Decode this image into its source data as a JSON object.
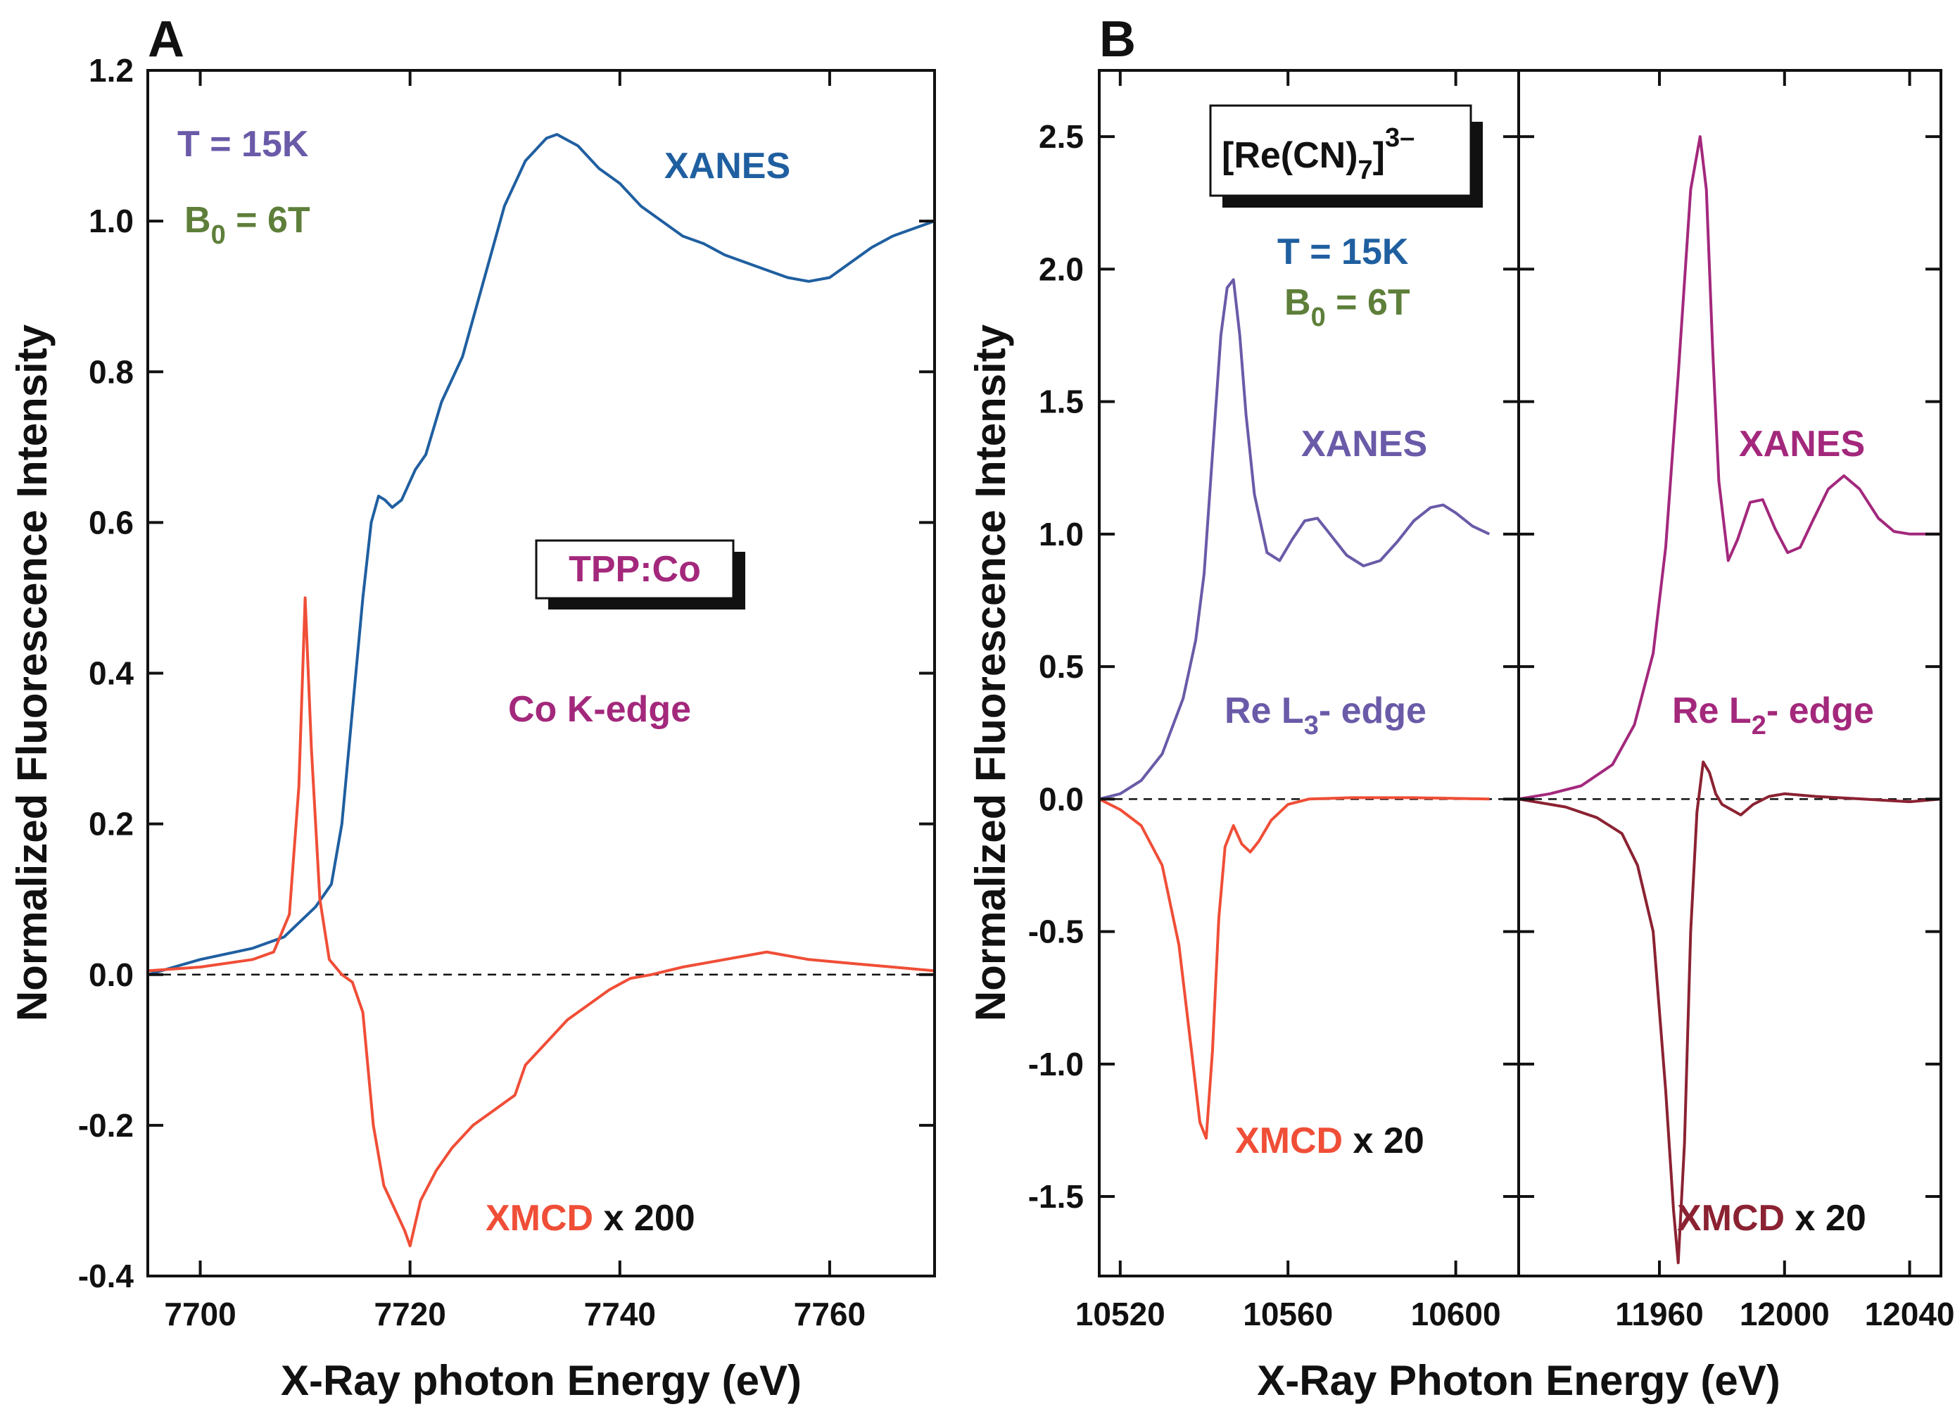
{
  "chart_data": [
    {
      "type": "line",
      "panel": "A",
      "xlabel": "X-Ray photon Energy  (eV)",
      "ylabel": "Normalized Fluorescence Intensity",
      "xlim": [
        7695,
        7770
      ],
      "ylim": [
        -0.4,
        1.2
      ],
      "xticks": [
        7700,
        7720,
        7740,
        7760
      ],
      "yticks": [
        -0.4,
        -0.2,
        0.0,
        0.2,
        0.4,
        0.6,
        0.8,
        1.0,
        1.2
      ],
      "ytick_labels": [
        "-0.4",
        "-0.2",
        "0.0",
        "0.2",
        "0.4",
        "0.6",
        "0.8",
        "1.0",
        "1.2"
      ],
      "baseline": 0.0,
      "series": [
        {
          "name": "XANES",
          "color": "#1f5fa0",
          "x": [
            7695,
            7700,
            7705,
            7708,
            7709.5,
            7711,
            7712.5,
            7713.5,
            7714.5,
            7715.5,
            7716.3,
            7717,
            7717.6,
            7718.3,
            7719.2,
            7720.5,
            7721.5,
            7723,
            7725,
            7727,
            7729,
            7731,
            7733,
            7734,
            7736,
            7738,
            7740,
            7742,
            7744,
            7746,
            7748,
            7750,
            7752,
            7754,
            7756,
            7758,
            7760,
            7762,
            7764,
            7766,
            7768,
            7770
          ],
          "values": [
            0.0,
            0.02,
            0.035,
            0.05,
            0.07,
            0.09,
            0.12,
            0.2,
            0.35,
            0.5,
            0.6,
            0.635,
            0.63,
            0.62,
            0.63,
            0.67,
            0.69,
            0.76,
            0.82,
            0.92,
            1.02,
            1.08,
            1.11,
            1.115,
            1.1,
            1.07,
            1.05,
            1.02,
            1.0,
            0.98,
            0.97,
            0.955,
            0.945,
            0.935,
            0.925,
            0.92,
            0.925,
            0.945,
            0.965,
            0.98,
            0.99,
            1.0
          ]
        },
        {
          "name": "XMCD x 200",
          "color": "#f04e37",
          "x": [
            7695,
            7700,
            7705,
            7707,
            7708.5,
            7709.4,
            7710,
            7710.6,
            7711.4,
            7712.3,
            7713.5,
            7714.5,
            7715.5,
            7716.5,
            7717.5,
            7718.5,
            7719.5,
            7720,
            7721,
            7722.5,
            7724,
            7726,
            7728,
            7730,
            7731,
            7733,
            7735,
            7737,
            7739,
            7741,
            7743,
            7746,
            7750,
            7754,
            7758,
            7762,
            7766,
            7770
          ],
          "values": [
            0.005,
            0.01,
            0.02,
            0.03,
            0.08,
            0.25,
            0.5,
            0.3,
            0.1,
            0.02,
            0.0,
            -0.01,
            -0.05,
            -0.2,
            -0.28,
            -0.31,
            -0.34,
            -0.36,
            -0.3,
            -0.26,
            -0.23,
            -0.2,
            -0.18,
            -0.16,
            -0.12,
            -0.09,
            -0.06,
            -0.04,
            -0.02,
            -0.005,
            0.0,
            0.01,
            0.02,
            0.03,
            0.02,
            0.015,
            0.01,
            0.005
          ]
        }
      ],
      "annotations": {
        "temperature": "T = 15K",
        "field_prefix": "B",
        "field_sub": "0",
        "field_suffix": " = 6T",
        "xanes_label": "XANES",
        "sample_label": "TPP:Co",
        "edge_label": "Co  K-edge",
        "xmcd_label": "XMCD",
        "xmcd_scale": " x 200",
        "colors": {
          "temperature": "#6a5aa8",
          "field": "#5e7f3a",
          "sample": "#a3287c",
          "edge": "#a3287c"
        }
      }
    },
    {
      "type": "line",
      "panel": "B",
      "xlabel": "X-Ray Photon Energy  (eV)",
      "ylabel": "Normalized Fluorescence Intensity",
      "ylim": [
        -1.8,
        2.75
      ],
      "yticks": [
        -1.5,
        -1.0,
        -0.5,
        0.0,
        0.5,
        1.0,
        1.5,
        2.0,
        2.5
      ],
      "ytick_labels": [
        "-1.5",
        "-1.0",
        "-0.5",
        "0.0",
        "0.5",
        "1.0",
        "1.5",
        "2.0",
        "2.5"
      ],
      "baseline": 0.0,
      "sample_prefix": "[Re(CN)",
      "sample_sub": "7",
      "sample_suffix": "]",
      "sample_sup": "3–",
      "temperature": "T = 15K",
      "field_prefix": "B",
      "field_sub": "0",
      "field_suffix": " = 6T",
      "subpanels": [
        {
          "name": "L3",
          "xlim": [
            10515,
            10615
          ],
          "xticks": [
            10520,
            10560,
            10600
          ],
          "edge_prefix": "Re  L",
          "edge_sub": "3",
          "edge_suffix": "- edge",
          "xanes_label": "XANES",
          "xmcd_label": "XMCD",
          "xmcd_scale": " x 20",
          "series": [
            {
              "name": "XANES",
              "color": "#6a5aa8",
              "x": [
                10515,
                10520,
                10525,
                10530,
                10535,
                10538,
                10540,
                10542,
                10544,
                10545.5,
                10547,
                10548.5,
                10550,
                10552,
                10555,
                10558,
                10561,
                10564,
                10567,
                10570,
                10574,
                10578,
                10582,
                10586,
                10590,
                10594,
                10597,
                10600,
                10604,
                10608
              ],
              "values": [
                0.0,
                0.02,
                0.07,
                0.17,
                0.38,
                0.6,
                0.85,
                1.3,
                1.75,
                1.93,
                1.96,
                1.75,
                1.45,
                1.15,
                0.93,
                0.9,
                0.98,
                1.05,
                1.06,
                1.0,
                0.92,
                0.88,
                0.9,
                0.97,
                1.05,
                1.1,
                1.11,
                1.08,
                1.03,
                1.0
              ]
            },
            {
              "name": "XMCD x 20",
              "color": "#f04e37",
              "x": [
                10515,
                10520,
                10525,
                10530,
                10534,
                10537,
                10539,
                10540.5,
                10542,
                10543.5,
                10545,
                10547,
                10549,
                10551,
                10553,
                10556,
                10560,
                10565,
                10575,
                10590,
                10608
              ],
              "values": [
                0.0,
                -0.04,
                -0.1,
                -0.25,
                -0.55,
                -0.95,
                -1.22,
                -1.28,
                -0.95,
                -0.45,
                -0.18,
                -0.1,
                -0.17,
                -0.2,
                -0.16,
                -0.08,
                -0.02,
                0.0,
                0.005,
                0.005,
                0.0
              ]
            }
          ]
        },
        {
          "name": "L2",
          "xlim": [
            11915,
            12050
          ],
          "xticks": [
            11960,
            12000,
            12040
          ],
          "edge_prefix": "Re  L",
          "edge_sub": "2",
          "edge_suffix": "- edge",
          "xanes_label": "XANES",
          "xmcd_label": "XMCD",
          "xmcd_scale": " x 20",
          "series": [
            {
              "name": "XANES",
              "color": "#a3287c",
              "x": [
                11915,
                11925,
                11935,
                11945,
                11952,
                11958,
                11962,
                11966,
                11970,
                11973,
                11975,
                11977,
                11979,
                11982,
                11985,
                11989,
                11993,
                11997,
                12001,
                12005,
                12009,
                12014,
                12019,
                12024,
                12030,
                12035,
                12040,
                12045,
                12050
              ],
              "values": [
                0.0,
                0.02,
                0.05,
                0.13,
                0.28,
                0.55,
                0.95,
                1.6,
                2.3,
                2.5,
                2.3,
                1.7,
                1.2,
                0.9,
                0.98,
                1.12,
                1.13,
                1.02,
                0.93,
                0.95,
                1.05,
                1.17,
                1.22,
                1.17,
                1.06,
                1.01,
                1.0,
                1.0,
                1.0
              ]
            },
            {
              "name": "XMCD x 20",
              "color": "#8b2232",
              "x": [
                11915,
                11930,
                11940,
                11948,
                11953,
                11958,
                11962,
                11964.5,
                11966,
                11968,
                11970,
                11972,
                11974,
                11976,
                11978,
                11980,
                11983,
                11986,
                11990,
                11995,
                12000,
                12010,
                12025,
                12040,
                12050
              ],
              "values": [
                0.0,
                -0.03,
                -0.07,
                -0.13,
                -0.25,
                -0.5,
                -1.1,
                -1.55,
                -1.75,
                -1.3,
                -0.5,
                -0.05,
                0.14,
                0.1,
                0.02,
                -0.02,
                -0.04,
                -0.06,
                -0.02,
                0.01,
                0.02,
                0.01,
                0.0,
                -0.01,
                0.0
              ]
            }
          ]
        }
      ],
      "colors": {
        "sample": "#111111",
        "temperature": "#1f5fa0",
        "field": "#5e7f3a",
        "xanes_L3": "#6a5aa8",
        "edge_L3": "#6a5aa8",
        "xanes_L2": "#a3287c",
        "edge_L2": "#a3287c"
      }
    }
  ]
}
